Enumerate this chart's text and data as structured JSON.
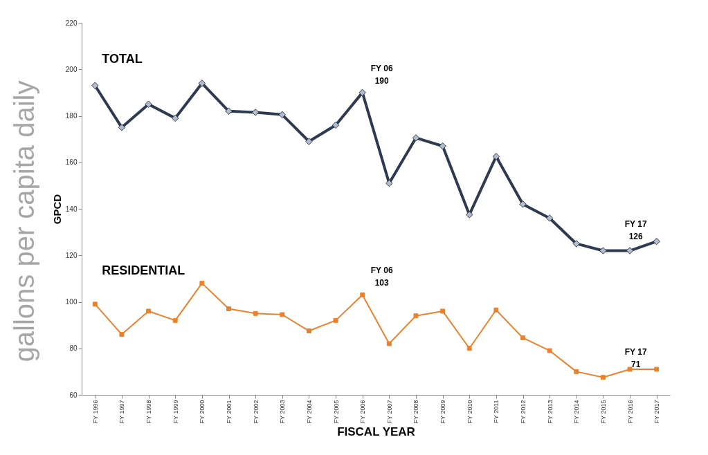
{
  "chart_data": {
    "type": "line",
    "xlabel": "FISCAL YEAR",
    "ylabel": "GPCD",
    "categories": [
      "FY 1996",
      "FY 1997",
      "FY 1998",
      "FY 1999",
      "FY 2000",
      "FY 2001",
      "FY 2002",
      "FY 2003",
      "FY 2004",
      "FY 2005",
      "FY 2006",
      "FY 2007",
      "FY 2008",
      "FY 2009",
      "FY 2010",
      "FY 2011",
      "FY 2012",
      "FY 2013",
      "FY 2014",
      "FY 2015",
      "FY 2016",
      "FY 2017"
    ],
    "series": [
      {
        "name": "TOTAL",
        "color": "#2e3a4f",
        "marker": "diamond",
        "values": [
          193,
          175,
          185,
          179,
          194,
          182,
          181.5,
          180.5,
          169,
          176,
          190,
          151,
          170.5,
          167,
          137.5,
          162.5,
          142,
          136,
          125,
          122,
          122,
          126
        ]
      },
      {
        "name": "RESIDENTIAL",
        "color": "#e8822e",
        "marker": "square",
        "values": [
          99,
          86,
          96,
          92,
          108,
          97,
          95,
          94.5,
          87.5,
          92,
          103,
          82,
          94,
          96,
          80,
          96.5,
          84.5,
          79,
          70,
          67.5,
          71,
          71
        ]
      }
    ],
    "ylim": [
      60,
      220
    ],
    "yticks": [
      60,
      80,
      100,
      120,
      140,
      160,
      180,
      200,
      220
    ],
    "grid": false,
    "annotations": [
      "gallons per capita daily",
      {
        "text": "FY 06\n190",
        "x": "FY 2006",
        "y": 190
      },
      {
        "text": "FY 17\n126",
        "x": "FY 2017",
        "y": 126
      },
      {
        "text": "FY 06\n103",
        "x": "FY 2006",
        "y": 103
      },
      {
        "text": "FY 17\n71",
        "x": "FY 2017",
        "y": 71
      }
    ]
  }
}
